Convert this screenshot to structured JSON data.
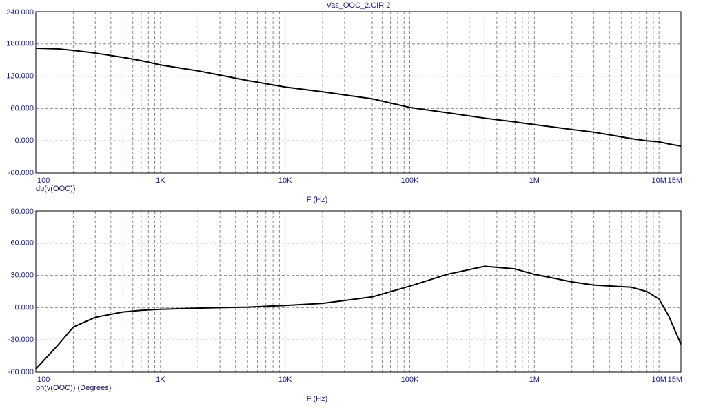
{
  "chart_data": [
    {
      "type": "line",
      "title": "Vas_OOC_2.CIR 2",
      "y_label": "db(v(OOC))",
      "x_label": "F (Hz)",
      "log_x": true,
      "grid": true,
      "xlim": [
        100,
        15000000
      ],
      "xticks": [
        100,
        {
          "value": 1000,
          "label": "1K"
        },
        {
          "value": 10000,
          "label": "10K"
        },
        {
          "value": 100000,
          "label": "100K"
        },
        {
          "value": 1000000,
          "label": "1M"
        },
        {
          "value": 10000000,
          "label": "10M"
        },
        {
          "value": 15000000,
          "label": "15M"
        }
      ],
      "ylim": [
        -60,
        240
      ],
      "yticks": [
        {
          "value": -60,
          "label": "-60.000"
        },
        {
          "value": 0,
          "label": "0.000"
        },
        {
          "value": 60,
          "label": "60.000"
        },
        {
          "value": 120,
          "label": "120.000"
        },
        {
          "value": 180,
          "label": "180.000"
        },
        {
          "value": 240,
          "label": "240.000"
        }
      ],
      "x": [
        100,
        150,
        200,
        300,
        500,
        700,
        1000,
        2000,
        3000,
        5000,
        10000,
        20000,
        50000,
        100000,
        200000,
        400000,
        700000,
        1000000,
        2000000,
        3000000,
        6000000,
        8000000,
        10000000,
        12000000,
        15000000
      ],
      "series": [
        {
          "color": "#000000",
          "values": [
            172,
            171,
            168,
            163,
            155,
            149,
            141,
            130,
            122,
            112,
            100,
            91,
            78,
            62,
            52,
            42,
            35,
            30,
            21,
            16,
            4,
            0,
            -2,
            -6,
            -10
          ]
        }
      ]
    },
    {
      "type": "line",
      "y_label": "ph(v(OOC)) (Degrees)",
      "x_label": "F (Hz)",
      "log_x": true,
      "grid": true,
      "xlim": [
        100,
        15000000
      ],
      "xticks": [
        100,
        {
          "value": 1000,
          "label": "1K"
        },
        {
          "value": 10000,
          "label": "10K"
        },
        {
          "value": 100000,
          "label": "100K"
        },
        {
          "value": 1000000,
          "label": "1M"
        },
        {
          "value": 10000000,
          "label": "10M"
        },
        {
          "value": 15000000,
          "label": "15M"
        }
      ],
      "ylim": [
        -60,
        90
      ],
      "yticks": [
        {
          "value": -60,
          "label": "-60.000"
        },
        {
          "value": -30,
          "label": "-30.000"
        },
        {
          "value": 0,
          "label": "0.000"
        },
        {
          "value": 30,
          "label": "30.000"
        },
        {
          "value": 60,
          "label": "60.000"
        },
        {
          "value": 90,
          "label": "90.000"
        }
      ],
      "x": [
        100,
        150,
        200,
        300,
        500,
        700,
        1000,
        2000,
        3000,
        5000,
        10000,
        20000,
        50000,
        100000,
        200000,
        400000,
        700000,
        1000000,
        2000000,
        3000000,
        6000000,
        8000000,
        10000000,
        12000000,
        15000000
      ],
      "series": [
        {
          "color": "#000000",
          "values": [
            -57,
            -35,
            -18,
            -9,
            -4,
            -2.5,
            -1.5,
            -0.5,
            0,
            0.5,
            2,
            4,
            10,
            20,
            31,
            38.5,
            36,
            31,
            24,
            21,
            19,
            15,
            8,
            -8,
            -34
          ]
        }
      ]
    }
  ]
}
